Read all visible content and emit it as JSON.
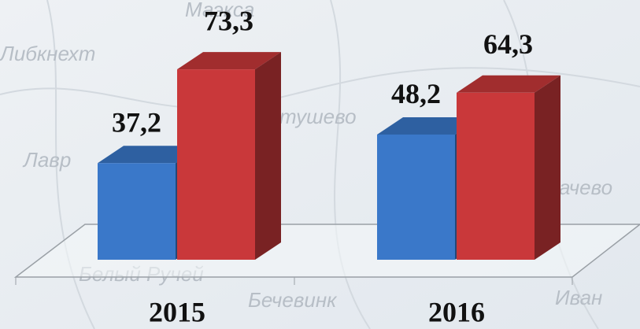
{
  "chart_data": {
    "type": "bar3d",
    "categories": [
      "2015",
      "2016"
    ],
    "series": [
      {
        "color": "#3a78c9",
        "values": [
          37.2,
          48.2
        ],
        "value_labels": [
          "37,2",
          "48,2"
        ]
      },
      {
        "color": "#c9383a",
        "values": [
          73.3,
          64.3
        ],
        "value_labels": [
          "73,3",
          "64,3"
        ]
      }
    ],
    "ylim": [
      0,
      80
    ],
    "map_labels": [
      "Маэкса",
      "Либкнехт",
      "тушево",
      "Лавр",
      "ачево",
      "Белый Ручей",
      "Бечевинк",
      "Иван"
    ]
  }
}
